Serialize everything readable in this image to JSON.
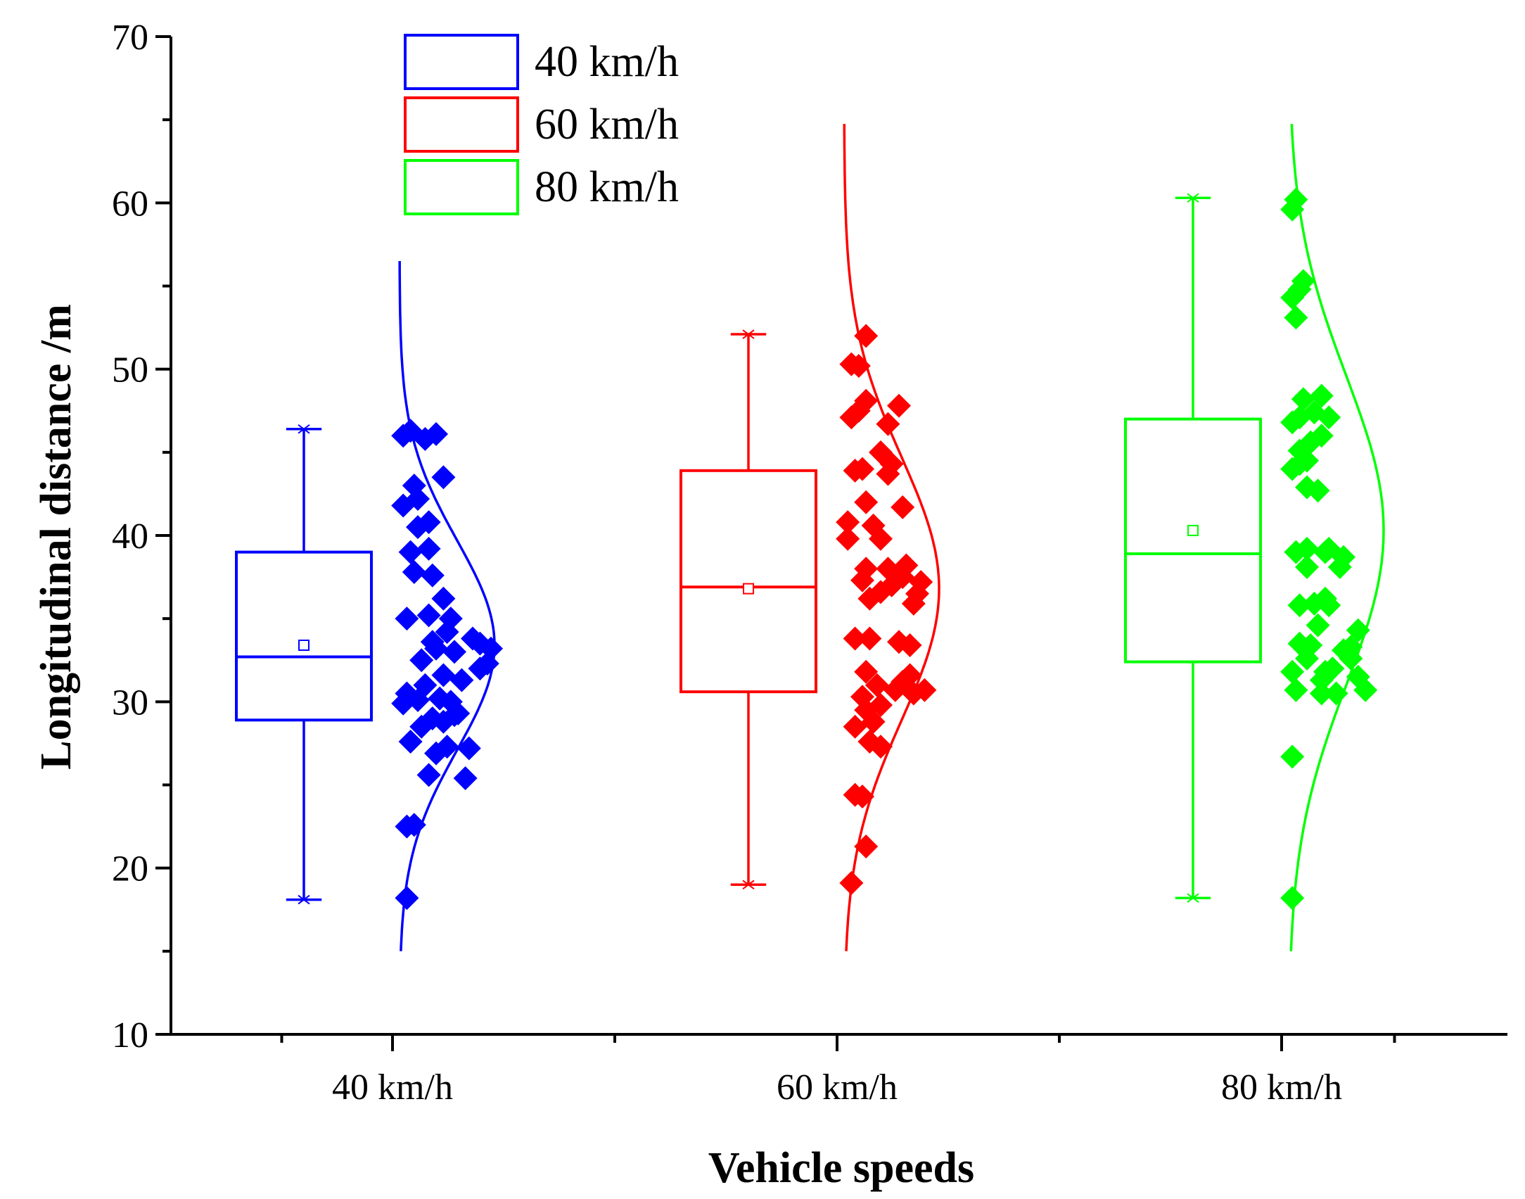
{
  "chart_data": {
    "type": "box",
    "title": "",
    "xlabel": "Vehicle speeds",
    "ylabel": "Longitudinal distance /m",
    "ylim": [
      10,
      70
    ],
    "yticks": [
      10,
      20,
      30,
      40,
      50,
      60,
      70
    ],
    "categories": [
      "40 km/h",
      "60 km/h",
      "80 km/h"
    ],
    "legend": {
      "position": "top-left",
      "entries": [
        "40 km/h",
        "60 km/h",
        "80 km/h"
      ]
    },
    "grid": false,
    "series": [
      {
        "name": "40 km/h",
        "color": "#0000ff",
        "box": {
          "whisker_low": 18.1,
          "q1": 28.9,
          "median": 32.7,
          "q3": 39.0,
          "whisker_high": 46.4,
          "mean": 33.4
        },
        "normal_curve": {
          "mean": 33.4,
          "sd": 6.3,
          "y_range": [
            15,
            56.7
          ]
        },
        "points": [
          [
            0.2,
            18.2
          ],
          [
            0.2,
            22.5
          ],
          [
            0.4,
            22.6
          ],
          [
            0.8,
            25.6
          ],
          [
            1.8,
            25.4
          ],
          [
            0.3,
            27.6
          ],
          [
            1.0,
            26.9
          ],
          [
            1.3,
            27.3
          ],
          [
            1.9,
            27.2
          ],
          [
            0.6,
            28.5
          ],
          [
            0.9,
            29.0
          ],
          [
            1.2,
            28.8
          ],
          [
            1.5,
            29.2
          ],
          [
            1.6,
            29.3
          ],
          [
            0.1,
            29.9
          ],
          [
            0.5,
            30.1
          ],
          [
            1.1,
            30.2
          ],
          [
            1.4,
            30.0
          ],
          [
            0.2,
            30.5
          ],
          [
            0.7,
            31.0
          ],
          [
            1.2,
            31.6
          ],
          [
            1.7,
            31.3
          ],
          [
            2.2,
            32.0
          ],
          [
            2.4,
            32.3
          ],
          [
            0.6,
            32.5
          ],
          [
            1.0,
            33.2
          ],
          [
            1.5,
            33.0
          ],
          [
            2.2,
            33.5
          ],
          [
            2.0,
            33.8
          ],
          [
            2.5,
            33.2
          ],
          [
            0.9,
            33.6
          ],
          [
            1.3,
            34.2
          ],
          [
            0.2,
            35.0
          ],
          [
            0.8,
            35.2
          ],
          [
            1.4,
            35.0
          ],
          [
            1.2,
            36.2
          ],
          [
            0.4,
            37.8
          ],
          [
            0.9,
            37.6
          ],
          [
            0.3,
            39.0
          ],
          [
            0.8,
            39.2
          ],
          [
            0.5,
            40.5
          ],
          [
            0.8,
            40.8
          ],
          [
            0.1,
            41.8
          ],
          [
            0.5,
            42.2
          ],
          [
            0.4,
            43.0
          ],
          [
            1.2,
            43.5
          ],
          [
            0.1,
            46.0
          ],
          [
            0.3,
            46.3
          ],
          [
            0.7,
            45.8
          ],
          [
            1.0,
            46.1
          ]
        ]
      },
      {
        "name": "60 km/h",
        "color": "#ff0000",
        "box": {
          "whisker_low": 19.0,
          "q1": 30.6,
          "median": 36.9,
          "q3": 43.9,
          "whisker_high": 52.1,
          "mean": 36.8
        },
        "normal_curve": {
          "mean": 36.8,
          "sd": 7.9,
          "y_range": [
            15,
            64.8
          ]
        },
        "points": [
          [
            0.2,
            19.1
          ],
          [
            0.6,
            21.3
          ],
          [
            0.3,
            24.4
          ],
          [
            0.5,
            24.3
          ],
          [
            1.0,
            27.3
          ],
          [
            0.7,
            27.6
          ],
          [
            0.3,
            28.5
          ],
          [
            0.8,
            28.8
          ],
          [
            0.6,
            29.5
          ],
          [
            1.0,
            29.8
          ],
          [
            0.5,
            30.3
          ],
          [
            1.4,
            30.7
          ],
          [
            1.9,
            30.5
          ],
          [
            2.2,
            30.7
          ],
          [
            0.9,
            31.0
          ],
          [
            1.6,
            31.2
          ],
          [
            1.8,
            31.6
          ],
          [
            0.6,
            31.8
          ],
          [
            0.3,
            33.8
          ],
          [
            0.7,
            33.8
          ],
          [
            1.5,
            33.6
          ],
          [
            1.8,
            33.4
          ],
          [
            0.7,
            36.2
          ],
          [
            1.0,
            36.6
          ],
          [
            1.9,
            35.9
          ],
          [
            2.0,
            36.5
          ],
          [
            0.5,
            37.3
          ],
          [
            1.3,
            37.0
          ],
          [
            1.6,
            37.5
          ],
          [
            2.1,
            37.2
          ],
          [
            0.6,
            38.0
          ],
          [
            1.2,
            38.0
          ],
          [
            1.7,
            38.2
          ],
          [
            0.1,
            39.8
          ],
          [
            1.0,
            39.8
          ],
          [
            0.1,
            40.8
          ],
          [
            0.8,
            40.6
          ],
          [
            0.6,
            42.0
          ],
          [
            1.6,
            41.7
          ],
          [
            0.3,
            43.9
          ],
          [
            0.5,
            44.0
          ],
          [
            1.2,
            43.7
          ],
          [
            1.3,
            44.3
          ],
          [
            1.0,
            45.0
          ],
          [
            0.2,
            47.1
          ],
          [
            0.4,
            47.5
          ],
          [
            1.2,
            46.7
          ],
          [
            1.5,
            47.8
          ],
          [
            0.6,
            48.1
          ],
          [
            0.2,
            50.3
          ],
          [
            0.4,
            50.2
          ],
          [
            0.6,
            52.0
          ]
        ]
      },
      {
        "name": "80 km/h",
        "color": "#00ff00",
        "box": {
          "whisker_low": 18.2,
          "q1": 32.4,
          "median": 38.9,
          "q3": 47.0,
          "whisker_high": 60.3,
          "mean": 40.3
        },
        "normal_curve": {
          "mean": 40.3,
          "sd": 9.3,
          "y_range": [
            15,
            64.9
          ]
        },
        "points": [
          [
            0.1,
            18.2
          ],
          [
            0.1,
            26.7
          ],
          [
            0.2,
            30.7
          ],
          [
            0.9,
            30.5
          ],
          [
            1.3,
            30.5
          ],
          [
            2.1,
            30.7
          ],
          [
            0.1,
            31.8
          ],
          [
            0.9,
            31.3
          ],
          [
            1.0,
            31.8
          ],
          [
            1.2,
            32.0
          ],
          [
            1.9,
            31.5
          ],
          [
            0.5,
            32.6
          ],
          [
            1.7,
            32.6
          ],
          [
            1.5,
            33.1
          ],
          [
            0.3,
            33.5
          ],
          [
            0.6,
            33.4
          ],
          [
            1.7,
            33.3
          ],
          [
            0.8,
            34.6
          ],
          [
            1.9,
            34.3
          ],
          [
            0.3,
            35.8
          ],
          [
            0.7,
            35.9
          ],
          [
            1.0,
            36.2
          ],
          [
            1.1,
            35.8
          ],
          [
            0.5,
            38.1
          ],
          [
            1.4,
            38.1
          ],
          [
            0.2,
            39.0
          ],
          [
            0.5,
            39.2
          ],
          [
            1.0,
            39.0
          ],
          [
            1.1,
            39.2
          ],
          [
            1.5,
            38.7
          ],
          [
            0.5,
            42.9
          ],
          [
            0.8,
            42.7
          ],
          [
            0.1,
            44.0
          ],
          [
            0.3,
            44.3
          ],
          [
            0.5,
            44.5
          ],
          [
            0.3,
            45.1
          ],
          [
            0.6,
            45.6
          ],
          [
            0.9,
            46.0
          ],
          [
            0.1,
            46.8
          ],
          [
            0.3,
            47.1
          ],
          [
            0.7,
            47.4
          ],
          [
            1.1,
            47.1
          ],
          [
            0.4,
            48.2
          ],
          [
            0.9,
            48.4
          ],
          [
            0.2,
            53.1
          ],
          [
            0.1,
            54.3
          ],
          [
            0.3,
            54.8
          ],
          [
            0.4,
            55.3
          ],
          [
            0.1,
            59.6
          ],
          [
            0.2,
            60.2
          ]
        ]
      }
    ]
  }
}
